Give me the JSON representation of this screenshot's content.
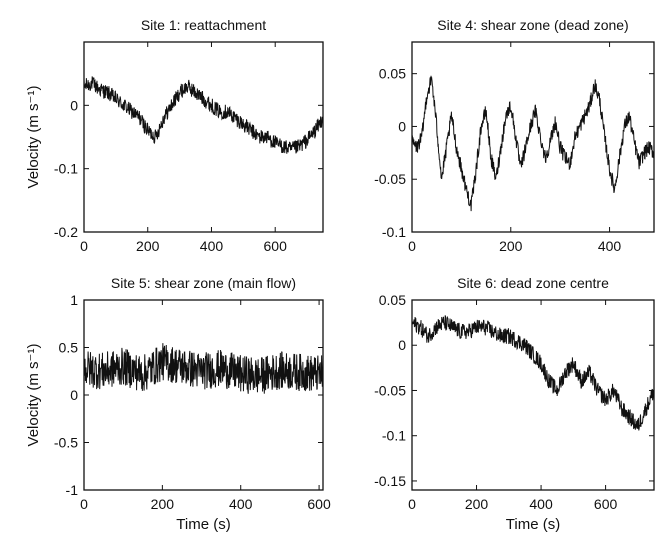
{
  "chart_data": [
    {
      "type": "line",
      "title": "Site 1:  reattachment",
      "xlabel": "",
      "ylabel": "Velocity (m s⁻¹)",
      "xlim": [
        0,
        750
      ],
      "ylim": [
        -0.2,
        0.1
      ],
      "xticks": [
        0,
        200,
        400,
        600
      ],
      "yticks": [
        -0.2,
        -0.1,
        0
      ],
      "ytick_labels": [
        "-0.2",
        "-0.1",
        "0"
      ],
      "series": [
        {
          "x": [
            0,
            25,
            50,
            75,
            100,
            125,
            150,
            175,
            200,
            225,
            250,
            275,
            300,
            325,
            350,
            375,
            400,
            425,
            450,
            475,
            500,
            525,
            550,
            575,
            600,
            625,
            650,
            675,
            700,
            725,
            750
          ],
          "y": [
            0.03,
            0.035,
            0.025,
            0.02,
            0.01,
            0.0,
            -0.01,
            -0.02,
            -0.04,
            -0.05,
            -0.02,
            0.0,
            0.02,
            0.03,
            0.02,
            0.01,
            0.0,
            -0.01,
            -0.01,
            -0.02,
            -0.03,
            -0.04,
            -0.05,
            -0.05,
            -0.06,
            -0.065,
            -0.07,
            -0.065,
            -0.055,
            -0.04,
            -0.02
          ],
          "noise": 0.012
        }
      ]
    },
    {
      "type": "line",
      "title": "Site 4:  shear zone (dead zone)",
      "xlabel": "",
      "ylabel": "",
      "xlim": [
        0,
        490
      ],
      "ylim": [
        -0.1,
        0.08
      ],
      "xticks": [
        0,
        200,
        400
      ],
      "yticks": [
        -0.1,
        -0.05,
        0,
        0.05
      ],
      "ytick_labels": [
        "-0.1",
        "-0.05",
        "0",
        "0.05"
      ],
      "series": [
        {
          "x": [
            0,
            10,
            20,
            30,
            40,
            50,
            60,
            70,
            80,
            90,
            100,
            110,
            120,
            130,
            140,
            150,
            160,
            170,
            180,
            190,
            200,
            210,
            220,
            230,
            240,
            250,
            260,
            270,
            280,
            290,
            300,
            310,
            320,
            330,
            340,
            350,
            360,
            370,
            380,
            390,
            400,
            410,
            420,
            430,
            440,
            450,
            460,
            470,
            480,
            490
          ],
          "y": [
            -0.015,
            -0.02,
            -0.01,
            0.03,
            0.045,
            0.0,
            -0.05,
            -0.02,
            0.01,
            -0.02,
            -0.04,
            -0.06,
            -0.075,
            -0.04,
            0.0,
            0.015,
            -0.03,
            -0.05,
            -0.02,
            0.01,
            0.02,
            -0.01,
            -0.04,
            -0.02,
            0.0,
            0.015,
            -0.01,
            -0.03,
            -0.015,
            0.005,
            -0.02,
            -0.03,
            -0.035,
            -0.01,
            0.0,
            0.01,
            0.02,
            0.04,
            0.025,
            -0.01,
            -0.04,
            -0.06,
            -0.03,
            0.0,
            0.01,
            -0.015,
            -0.035,
            -0.025,
            -0.02,
            -0.025
          ],
          "noise": 0.007
        }
      ]
    },
    {
      "type": "line",
      "title": "Site 5:  shear zone (main flow)",
      "xlabel": "Time (s)",
      "ylabel": "Velocity (m s⁻¹)",
      "xlim": [
        0,
        610
      ],
      "ylim": [
        -1,
        1
      ],
      "xticks": [
        0,
        200,
        400,
        600
      ],
      "yticks": [
        -1,
        -0.5,
        0,
        0.5,
        1
      ],
      "ytick_labels": [
        "-1",
        "-0.5",
        "0",
        "0.5",
        "1"
      ],
      "series": [
        {
          "x": [
            0,
            50,
            100,
            150,
            200,
            250,
            300,
            350,
            400,
            450,
            500,
            550,
            600
          ],
          "y": [
            0.28,
            0.25,
            0.3,
            0.22,
            0.35,
            0.3,
            0.25,
            0.28,
            0.22,
            0.2,
            0.26,
            0.24,
            0.22
          ],
          "noise": 0.2
        }
      ]
    },
    {
      "type": "line",
      "title": "Site 6:  dead zone centre",
      "xlabel": "Time (s)",
      "ylabel": "",
      "xlim": [
        0,
        750
      ],
      "ylim": [
        -0.16,
        0.05
      ],
      "xticks": [
        0,
        200,
        400,
        600
      ],
      "yticks": [
        -0.15,
        -0.1,
        -0.05,
        0,
        0.05
      ],
      "ytick_labels": [
        "-0.15",
        "-0.1",
        "-0.05",
        "0",
        "0.05"
      ],
      "series": [
        {
          "x": [
            0,
            25,
            50,
            75,
            100,
            125,
            150,
            175,
            200,
            225,
            250,
            275,
            300,
            325,
            350,
            375,
            400,
            425,
            450,
            475,
            500,
            525,
            550,
            575,
            600,
            625,
            650,
            675,
            700,
            725,
            750
          ],
          "y": [
            0.025,
            0.02,
            0.01,
            0.02,
            0.025,
            0.02,
            0.015,
            0.015,
            0.02,
            0.02,
            0.015,
            0.01,
            0.01,
            0.005,
            0.0,
            -0.01,
            -0.02,
            -0.04,
            -0.05,
            -0.03,
            -0.02,
            -0.04,
            -0.03,
            -0.05,
            -0.06,
            -0.05,
            -0.07,
            -0.08,
            -0.09,
            -0.07,
            -0.05
          ],
          "noise": 0.009
        }
      ]
    }
  ]
}
